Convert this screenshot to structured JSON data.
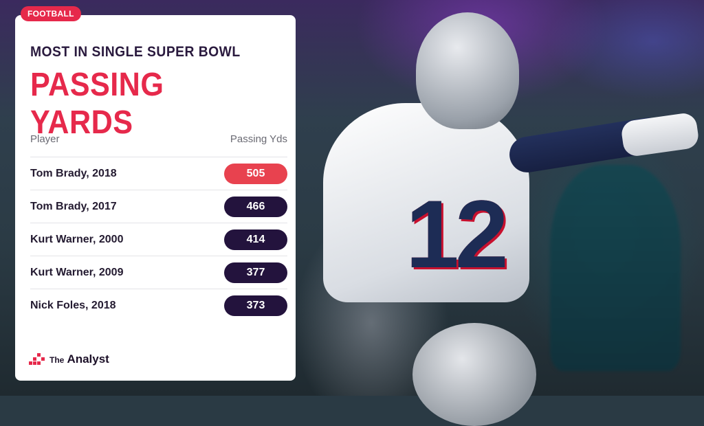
{
  "category_tag": "FOOTBALL",
  "subtitle": "MOST IN SINGLE SUPER BOWL",
  "title": "PASSING YARDS",
  "table": {
    "headers": [
      "Player",
      "Passing Yds"
    ],
    "rows": [
      {
        "player": "Tom Brady, 2018",
        "yards": "505"
      },
      {
        "player": "Tom Brady, 2017",
        "yards": "466"
      },
      {
        "player": "Kurt Warner, 2000",
        "yards": "414"
      },
      {
        "player": "Kurt Warner, 2009",
        "yards": "377"
      },
      {
        "player": "Nick Foles, 2018",
        "yards": "373"
      }
    ]
  },
  "brand": {
    "prefix": "The",
    "name": "Analyst"
  },
  "colors": {
    "accent": "#e6294b",
    "pill_dark": "#23133d",
    "pill_top": "#e8424f"
  },
  "photo": {
    "jersey_number": "12"
  }
}
